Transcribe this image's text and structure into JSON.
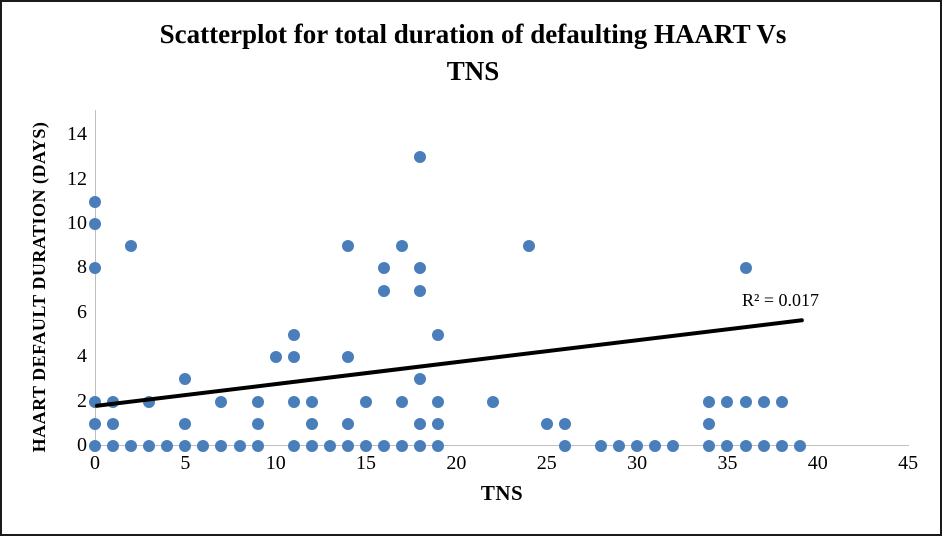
{
  "title_lines": [
    "Scatterplot for total duration of defaulting HAART Vs",
    "TNS"
  ],
  "chart_data": {
    "type": "scatter",
    "title": "Scatterplot for total duration of defaulting HAART Vs TNS",
    "xlabel": "TNS",
    "ylabel": "HAART DEFAULT DURATION (DAYS)",
    "xlim": [
      0,
      45
    ],
    "ylim": [
      0,
      14
    ],
    "x_ticks": [
      0,
      5,
      10,
      15,
      20,
      25,
      30,
      35,
      40,
      45
    ],
    "y_ticks": [
      0,
      2,
      4,
      6,
      8,
      10,
      12,
      14
    ],
    "grid": false,
    "legend": "none",
    "annotation": "R² = 0.017",
    "marker_color": "#4a7ebb",
    "trendline": {
      "x1": 0,
      "y1": 1.78,
      "x2": 39.2,
      "y2": 5.65,
      "color": "#000000"
    },
    "axis_color": "#bfbfbf",
    "points": [
      [
        0,
        0
      ],
      [
        1,
        0
      ],
      [
        2,
        0
      ],
      [
        3,
        0
      ],
      [
        4,
        0
      ],
      [
        5,
        0
      ],
      [
        6,
        0
      ],
      [
        7,
        0
      ],
      [
        8,
        0
      ],
      [
        9,
        0
      ],
      [
        11,
        0
      ],
      [
        12,
        0
      ],
      [
        13,
        0
      ],
      [
        14,
        0
      ],
      [
        15,
        0
      ],
      [
        16,
        0
      ],
      [
        17,
        0
      ],
      [
        18,
        0
      ],
      [
        19,
        0
      ],
      [
        26,
        0
      ],
      [
        28,
        0
      ],
      [
        29,
        0
      ],
      [
        30,
        0
      ],
      [
        31,
        0
      ],
      [
        32,
        0
      ],
      [
        34,
        0
      ],
      [
        35,
        0
      ],
      [
        36,
        0
      ],
      [
        37,
        0
      ],
      [
        38,
        0
      ],
      [
        39,
        0
      ],
      [
        0,
        1
      ],
      [
        1,
        1
      ],
      [
        5,
        1
      ],
      [
        9,
        1
      ],
      [
        12,
        1
      ],
      [
        14,
        1
      ],
      [
        18,
        1
      ],
      [
        19,
        1
      ],
      [
        25,
        1
      ],
      [
        26,
        1
      ],
      [
        34,
        1
      ],
      [
        0,
        2
      ],
      [
        1,
        2
      ],
      [
        3,
        2
      ],
      [
        7,
        2
      ],
      [
        9,
        2
      ],
      [
        11,
        2
      ],
      [
        12,
        2
      ],
      [
        15,
        2
      ],
      [
        17,
        2
      ],
      [
        19,
        2
      ],
      [
        22,
        2
      ],
      [
        34,
        2
      ],
      [
        35,
        2
      ],
      [
        36,
        2
      ],
      [
        37,
        2
      ],
      [
        38,
        2
      ],
      [
        5,
        3
      ],
      [
        18,
        3
      ],
      [
        10,
        4
      ],
      [
        11,
        4
      ],
      [
        14,
        4
      ],
      [
        11,
        5
      ],
      [
        19,
        5
      ],
      [
        16,
        7
      ],
      [
        18,
        7
      ],
      [
        0,
        8
      ],
      [
        16,
        8
      ],
      [
        18,
        8
      ],
      [
        36,
        8
      ],
      [
        2,
        9
      ],
      [
        14,
        9
      ],
      [
        17,
        9
      ],
      [
        24,
        9
      ],
      [
        0,
        10
      ],
      [
        0,
        11
      ],
      [
        18,
        13
      ]
    ]
  }
}
